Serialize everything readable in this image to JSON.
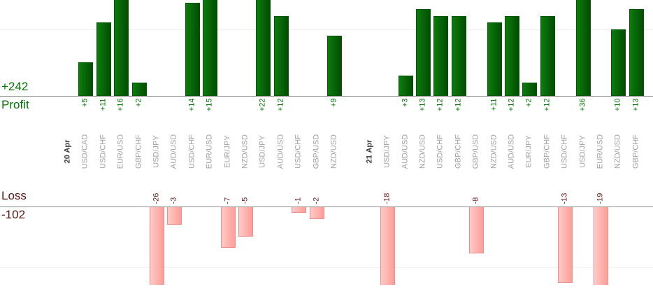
{
  "chart_data": {
    "type": "bar",
    "title": "",
    "description": "Daily forex trade results: profit bars (top pane) and loss bars (bottom pane) per currency pair, grouped by date",
    "legend_position": "none",
    "grid": "one faint horizontal gridline per pane",
    "profit": {
      "axis_label": "Profit",
      "total_label": "+242",
      "total": 242,
      "bar_color": "#0c7c0c",
      "bar_color_dark": "#024d02",
      "text_color": "#007500",
      "gridline_value": 10,
      "bars_clipped_at_top": true
    },
    "loss": {
      "axis_label": "Loss",
      "total_label": "-102",
      "total": -102,
      "bar_color": "#ffb3af",
      "bar_border_color": "#ee8e8a",
      "text_color": "#5c1414",
      "value_text_color": "#6e2424",
      "gridline_value": -10,
      "bars_clipped_at_bottom": true
    },
    "x_axis": {
      "date_groups": [
        "20 Apr",
        "21 Apr"
      ],
      "label_color": "#a2a2a2",
      "date_label_color": "#3a3a3a",
      "labels_rotated": "90deg counterclockwise, read bottom-to-top"
    },
    "columns": [
      {
        "type": "date",
        "label": "20 Apr"
      },
      {
        "type": "pair",
        "label": "USD/CAD",
        "profit": 5,
        "profit_label": "+5"
      },
      {
        "type": "pair",
        "label": "USD/CHF",
        "profit": 11,
        "profit_label": "+11"
      },
      {
        "type": "pair",
        "label": "EUR/USD",
        "profit": 16,
        "profit_label": "+16"
      },
      {
        "type": "pair",
        "label": "GBP/CHF",
        "profit": 2,
        "profit_label": "+2"
      },
      {
        "type": "pair",
        "label": "USD/JPY",
        "loss": -26,
        "loss_label": "-26"
      },
      {
        "type": "pair",
        "label": "AUD/USD",
        "loss": -3,
        "loss_label": "-3"
      },
      {
        "type": "pair",
        "label": "USD/CHF",
        "profit": 14,
        "profit_label": "+14"
      },
      {
        "type": "pair",
        "label": "EUR/USD",
        "profit": 15,
        "profit_label": "+15"
      },
      {
        "type": "pair",
        "label": "EUR/JPY",
        "loss": -7,
        "loss_label": "-7"
      },
      {
        "type": "pair",
        "label": "NZD/USD",
        "loss": -5,
        "loss_label": "-5"
      },
      {
        "type": "pair",
        "label": "USD/JPY",
        "profit": 22,
        "profit_label": "+22"
      },
      {
        "type": "pair",
        "label": "AUD/USD",
        "profit": 12,
        "profit_label": "+12"
      },
      {
        "type": "pair",
        "label": "USD/CHF",
        "loss": -1,
        "loss_label": "-1"
      },
      {
        "type": "pair",
        "label": "GBP/USD",
        "loss": -2,
        "loss_label": "-2"
      },
      {
        "type": "pair",
        "label": "NZD/USD",
        "profit": 9,
        "profit_label": "+9"
      },
      {
        "type": "spacer"
      },
      {
        "type": "date",
        "label": "21 Apr"
      },
      {
        "type": "pair",
        "label": "USD/JPY",
        "loss": -18,
        "loss_label": "-18"
      },
      {
        "type": "pair",
        "label": "AUD/USD",
        "profit": 3,
        "profit_label": "+3"
      },
      {
        "type": "pair",
        "label": "NZD/USD",
        "profit": 13,
        "profit_label": "+13"
      },
      {
        "type": "pair",
        "label": "USD/CHF",
        "profit": 12,
        "profit_label": "+12"
      },
      {
        "type": "pair",
        "label": "GBP/CHF",
        "profit": 12,
        "profit_label": "+12"
      },
      {
        "type": "pair",
        "label": "GBP/USD",
        "loss": -8,
        "loss_label": "-8"
      },
      {
        "type": "pair",
        "label": "NZD/USD",
        "profit": 11,
        "profit_label": "+11"
      },
      {
        "type": "pair",
        "label": "AUD/USD",
        "profit": 12,
        "profit_label": "+12"
      },
      {
        "type": "pair",
        "label": "EUR/JPY",
        "profit": 2,
        "profit_label": "+2"
      },
      {
        "type": "pair",
        "label": "GBP/CHF",
        "profit": 12,
        "profit_label": "+12"
      },
      {
        "type": "pair",
        "label": "USD/CHF",
        "loss": -13,
        "loss_label": "-13"
      },
      {
        "type": "pair",
        "label": "USD/JPY",
        "profit": 36,
        "profit_label": "+36"
      },
      {
        "type": "pair",
        "label": "EUR/USD",
        "loss": -19,
        "loss_label": "-19"
      },
      {
        "type": "pair",
        "label": "NZD/USD",
        "profit": 10,
        "profit_label": "+10"
      },
      {
        "type": "pair",
        "label": "GBP/CHF",
        "profit": 13,
        "profit_label": "+13"
      }
    ]
  }
}
